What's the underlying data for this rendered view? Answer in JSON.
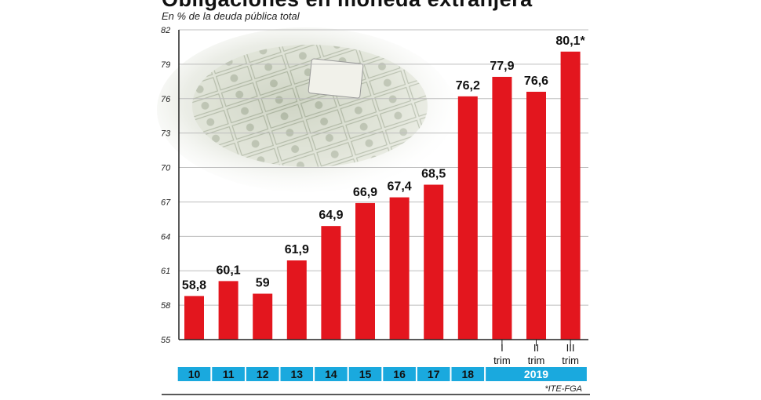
{
  "title": "Obligaciones en moneda extranjera",
  "subtitle": "En % de la deuda pública total",
  "source": "*ITE-FGA",
  "colors": {
    "bar": "#e3161e",
    "band": "#1aa9de",
    "axis": "#222222",
    "grid": "#bdbdbd",
    "year_text": "#ffffff"
  },
  "chart_data": {
    "type": "bar",
    "categories": [
      "10",
      "11",
      "12",
      "13",
      "14",
      "15",
      "16",
      "17",
      "18",
      "I trim",
      "II trim",
      "III trim"
    ],
    "values": [
      58.8,
      60.1,
      59,
      61.9,
      64.9,
      66.9,
      67.4,
      68.5,
      76.2,
      77.9,
      76.6,
      80.1
    ],
    "value_labels": [
      "58,8",
      "60,1",
      "59",
      "61,9",
      "64,9",
      "66,9",
      "67,4",
      "68,5",
      "76,2",
      "77,9",
      "76,6",
      "80,1*"
    ],
    "period_labels": [
      [
        "I",
        "trim"
      ],
      [
        "II",
        "trim"
      ],
      [
        "III",
        "trim"
      ]
    ],
    "year_labels": [
      "10",
      "11",
      "12",
      "13",
      "14",
      "15",
      "16",
      "17",
      "18",
      "2019"
    ],
    "yticks": [
      55,
      58,
      61,
      64,
      67,
      70,
      73,
      76,
      79,
      82
    ],
    "ylim": [
      55,
      82
    ],
    "grid": true,
    "xlabel": "",
    "ylabel": ""
  }
}
